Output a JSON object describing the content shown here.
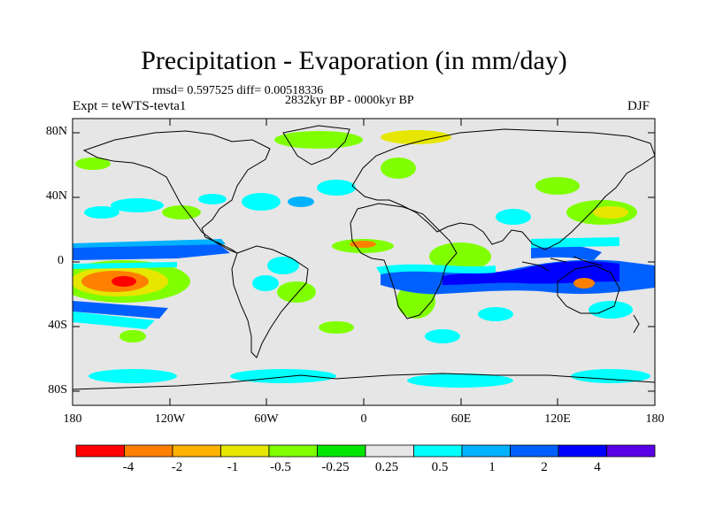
{
  "title": "Precipitation - Evaporation (in mm/day)",
  "stats": "rmsd= 0.597525  diff= 0.00518336",
  "period": "2832kyr BP - 0000kyr BP",
  "experiment": "Expt = teWTS-tevta1",
  "season": "DJF",
  "lat_labels": [
    "80N",
    "40N",
    "0",
    "40S",
    "80S"
  ],
  "lon_labels": [
    "180",
    "120W",
    "60W",
    "0",
    "60E",
    "120E",
    "180"
  ],
  "colorbar": {
    "colors": [
      "#ff0000",
      "#ff8000",
      "#ffb200",
      "#e6e600",
      "#80ff00",
      "#00e600",
      "#e6e6e6",
      "#00ffff",
      "#00b2ff",
      "#0060ff",
      "#0000ff",
      "#5a00e6"
    ],
    "labels": [
      "-4",
      "-2",
      "-1",
      "-0.5",
      "-0.25",
      "0.25",
      "0.5",
      "1",
      "2",
      "4"
    ]
  }
}
